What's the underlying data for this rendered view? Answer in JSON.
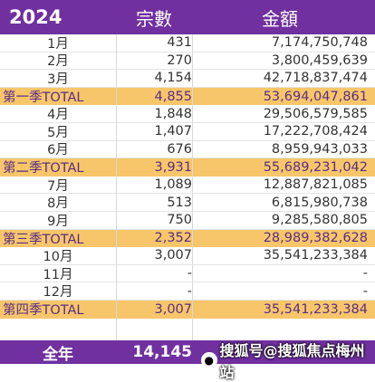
{
  "header": {
    "year": "2024",
    "count_label": "宗數",
    "amount_label": "金額"
  },
  "rows": [
    {
      "type": "month",
      "label": "1月",
      "count": "431",
      "amount": "7,174,750,748"
    },
    {
      "type": "month",
      "label": "2月",
      "count": "270",
      "amount": "3,800,459,639"
    },
    {
      "type": "month",
      "label": "3月",
      "count": "4,154",
      "amount": "42,718,837,474"
    },
    {
      "type": "quarter",
      "label": "第一季TOTAL",
      "count": "4,855",
      "amount": "53,694,047,861"
    },
    {
      "type": "month",
      "label": "4月",
      "count": "1,848",
      "amount": "29,506,579,585"
    },
    {
      "type": "month",
      "label": "5月",
      "count": "1,407",
      "amount": "17,222,708,424"
    },
    {
      "type": "month",
      "label": "6月",
      "count": "676",
      "amount": "8,959,943,033"
    },
    {
      "type": "quarter",
      "label": "第二季TOTAL",
      "count": "3,931",
      "amount": "55,689,231,042"
    },
    {
      "type": "month",
      "label": "7月",
      "count": "1,089",
      "amount": "12,887,821,085"
    },
    {
      "type": "month",
      "label": "8月",
      "count": "513",
      "amount": "6,815,980,738"
    },
    {
      "type": "month",
      "label": "9月",
      "count": "750",
      "amount": "9,285,580,805"
    },
    {
      "type": "quarter",
      "label": "第三季TOTAL",
      "count": "2,352",
      "amount": "28,989,382,628"
    },
    {
      "type": "month",
      "label": "10月",
      "count": "3,007",
      "amount": "35,541,233,384"
    },
    {
      "type": "month",
      "label": "11月",
      "count": "-",
      "amount": "-"
    },
    {
      "type": "month",
      "label": "12月",
      "count": "-",
      "amount": "-"
    },
    {
      "type": "quarter",
      "label": "第四季TOTAL",
      "count": "3,007",
      "amount": "35,541,233,384"
    }
  ],
  "total": {
    "label": "全年",
    "count": "14,145",
    "amount": ""
  },
  "watermark": {
    "text": "搜狐号@搜狐焦点梅州站",
    "icon": "paw-icon"
  }
}
